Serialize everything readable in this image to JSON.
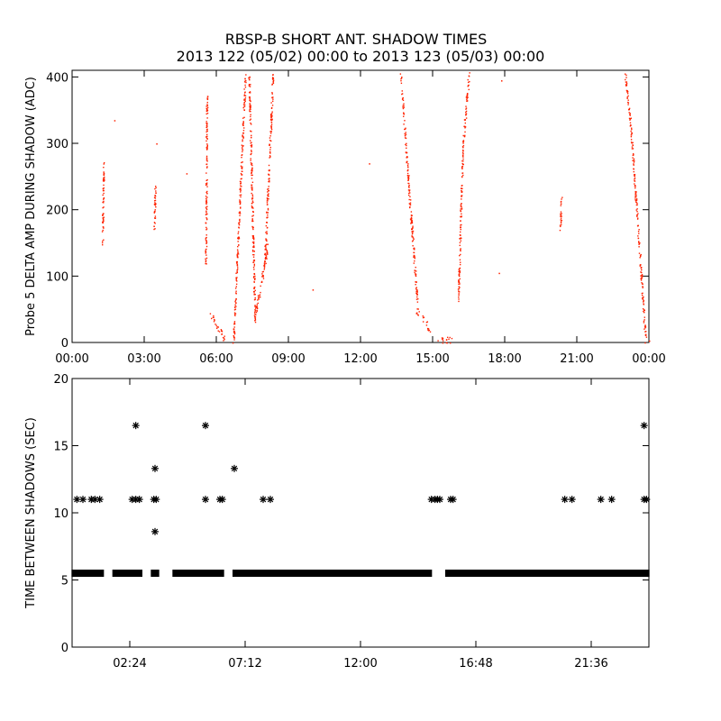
{
  "figure": {
    "title": "RBSP-B SHORT ANT. SHADOW TIMES",
    "subtitle": "2013 122 (05/02) 00:00 to 2013 123 (05/03) 00:00"
  },
  "chart_data": [
    {
      "type": "scatter",
      "ylabel": "Probe 5 DELTA AMP DURING SHADOW (ADC)",
      "xlabel": "",
      "x_unit": "hours since 2013-05-02 00:00",
      "xlim": [
        0,
        24
      ],
      "ylim": [
        0,
        410
      ],
      "xtick_values": [
        0,
        3,
        6,
        9,
        12,
        15,
        18,
        21,
        24
      ],
      "xtick_labels": [
        "00:00",
        "03:00",
        "06:00",
        "09:00",
        "12:00",
        "15:00",
        "18:00",
        "21:00",
        "00:00"
      ],
      "ytick_values": [
        0,
        100,
        200,
        300,
        400
      ],
      "ytick_labels": [
        "0",
        "100",
        "200",
        "300",
        "400"
      ],
      "marker": "dot",
      "color": "#ff2200",
      "segments": [
        {
          "x": [
            1.25,
            1.3
          ],
          "y": [
            150,
            270
          ]
        },
        {
          "x": [
            3.4,
            3.45
          ],
          "y": [
            165,
            235
          ]
        },
        {
          "x": [
            5.55,
            5.6
          ],
          "y": [
            120,
            370
          ]
        },
        {
          "x": [
            5.75,
            6.35
          ],
          "y": [
            45,
            2
          ]
        },
        {
          "x": [
            6.7,
            6.95
          ],
          "y": [
            2,
            200
          ]
        },
        {
          "x": [
            6.95,
            7.2
          ],
          "y": [
            200,
            405
          ]
        },
        {
          "x": [
            7.35,
            7.6
          ],
          "y": [
            405,
            30
          ]
        },
        {
          "x": [
            7.6,
            8.15
          ],
          "y": [
            40,
            150
          ]
        },
        {
          "x": [
            8.0,
            8.35
          ],
          "y": [
            120,
            405
          ]
        },
        {
          "x": [
            13.65,
            14.35
          ],
          "y": [
            405,
            60
          ]
        },
        {
          "x": [
            14.3,
            14.9
          ],
          "y": [
            50,
            20
          ]
        },
        {
          "x": [
            15.2,
            15.85
          ],
          "y": [
            3,
            3
          ]
        },
        {
          "x": [
            16.05,
            16.25
          ],
          "y": [
            60,
            300
          ]
        },
        {
          "x": [
            16.25,
            16.5
          ],
          "y": [
            300,
            405
          ]
        },
        {
          "x": [
            20.3,
            20.35
          ],
          "y": [
            170,
            215
          ]
        },
        {
          "x": [
            23.0,
            23.25
          ],
          "y": [
            405,
            320
          ]
        },
        {
          "x": [
            23.25,
            23.85
          ],
          "y": [
            320,
            5
          ]
        }
      ],
      "isolated_points": [
        {
          "x": 1.75,
          "y": 335
        },
        {
          "x": 3.5,
          "y": 300
        },
        {
          "x": 4.75,
          "y": 255
        },
        {
          "x": 10.0,
          "y": 80
        },
        {
          "x": 12.35,
          "y": 270
        },
        {
          "x": 17.75,
          "y": 105
        },
        {
          "x": 17.85,
          "y": 395
        },
        {
          "x": 24.0,
          "y": 3
        }
      ]
    },
    {
      "type": "scatter",
      "ylabel": "TIME BETWEEN SHADOWS (SEC)",
      "xlabel": "",
      "x_unit": "hours since 2013-05-02 00:00",
      "xlim": [
        0,
        24
      ],
      "ylim": [
        0,
        20
      ],
      "xtick_values": [
        2.4,
        7.2,
        12.0,
        16.8,
        21.6
      ],
      "xtick_labels": [
        "02:24",
        "07:12",
        "12:00",
        "16:48",
        "21:36"
      ],
      "ytick_values": [
        0,
        5,
        10,
        15,
        20
      ],
      "ytick_labels": [
        "0",
        "5",
        "10",
        "15",
        "20"
      ],
      "marker": "asterisk",
      "color": "#000000",
      "baseline_runs": [
        {
          "x_start": 0.05,
          "x_end": 1.25,
          "y": 5.5
        },
        {
          "x_start": 1.75,
          "x_end": 2.85,
          "y": 5.5
        },
        {
          "x_start": 3.35,
          "x_end": 3.55,
          "y": 5.5
        },
        {
          "x_start": 4.25,
          "x_end": 6.25,
          "y": 5.5
        },
        {
          "x_start": 6.75,
          "x_end": 14.9,
          "y": 5.5
        },
        {
          "x_start": 15.6,
          "x_end": 23.95,
          "y": 5.5
        }
      ],
      "points": [
        {
          "x": 0.2,
          "y": 11
        },
        {
          "x": 0.45,
          "y": 11
        },
        {
          "x": 0.8,
          "y": 11
        },
        {
          "x": 0.95,
          "y": 11
        },
        {
          "x": 1.15,
          "y": 11
        },
        {
          "x": 2.5,
          "y": 11
        },
        {
          "x": 2.65,
          "y": 11
        },
        {
          "x": 2.8,
          "y": 11
        },
        {
          "x": 2.65,
          "y": 16.5
        },
        {
          "x": 3.4,
          "y": 11
        },
        {
          "x": 3.5,
          "y": 11
        },
        {
          "x": 3.45,
          "y": 13.3
        },
        {
          "x": 3.45,
          "y": 8.6
        },
        {
          "x": 5.55,
          "y": 11
        },
        {
          "x": 5.55,
          "y": 16.5
        },
        {
          "x": 6.15,
          "y": 11
        },
        {
          "x": 6.25,
          "y": 11
        },
        {
          "x": 6.75,
          "y": 13.3
        },
        {
          "x": 7.95,
          "y": 11
        },
        {
          "x": 8.25,
          "y": 11
        },
        {
          "x": 14.95,
          "y": 11
        },
        {
          "x": 15.1,
          "y": 11
        },
        {
          "x": 15.2,
          "y": 11
        },
        {
          "x": 15.3,
          "y": 11
        },
        {
          "x": 15.75,
          "y": 11
        },
        {
          "x": 15.85,
          "y": 11
        },
        {
          "x": 20.5,
          "y": 11
        },
        {
          "x": 20.8,
          "y": 11
        },
        {
          "x": 22.0,
          "y": 11
        },
        {
          "x": 22.45,
          "y": 11
        },
        {
          "x": 23.8,
          "y": 11
        },
        {
          "x": 23.9,
          "y": 11
        },
        {
          "x": 23.8,
          "y": 16.5
        }
      ]
    }
  ]
}
